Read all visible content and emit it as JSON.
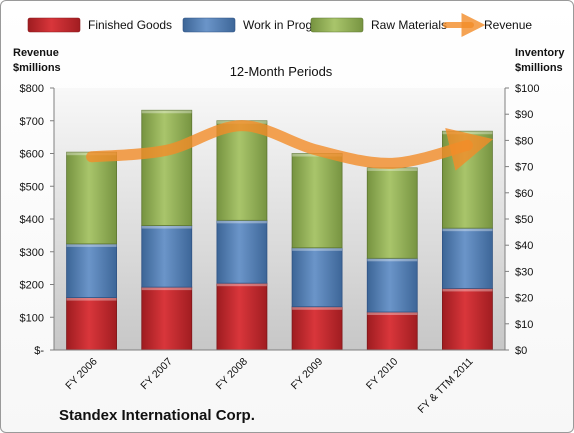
{
  "chart_data": {
    "type": "bar",
    "title": "12-Month Periods",
    "company": "Standex International Corp.",
    "categories": [
      "FY 2006",
      "FY 2007",
      "FY 2008",
      "FY 2009",
      "FY 2010",
      "FY & TTM 2011"
    ],
    "left_axis": {
      "label_line1": "Revenue",
      "label_line2": "$millions",
      "ylim": [
        0,
        800
      ],
      "ticks": [
        "$-",
        "$100",
        "$200",
        "$300",
        "$400",
        "$500",
        "$600",
        "$700",
        "$800"
      ],
      "tick_values": [
        0,
        100,
        200,
        300,
        400,
        500,
        600,
        700,
        800
      ]
    },
    "right_axis": {
      "label_line1": "Inventory",
      "label_line2": "$millions",
      "ylim": [
        0,
        100
      ],
      "ticks": [
        "$0",
        "$10",
        "$20",
        "$30",
        "$40",
        "$50",
        "$60",
        "$70",
        "$80",
        "$90",
        "$100"
      ],
      "tick_values": [
        0,
        10,
        20,
        30,
        40,
        50,
        60,
        70,
        80,
        90,
        100
      ]
    },
    "series": [
      {
        "name": "Finished Goods",
        "kind": "bar",
        "axis": "right",
        "color": "#c0282d",
        "values": [
          20,
          24,
          25.5,
          16.5,
          14.5,
          23.5
        ]
      },
      {
        "name": "Work in Progress",
        "kind": "bar",
        "axis": "right",
        "color": "#4f81bd",
        "values": [
          20.5,
          23.5,
          24,
          22.5,
          20.5,
          23
        ]
      },
      {
        "name": "Raw Materials",
        "kind": "bar",
        "axis": "right",
        "color": "#9bbb59",
        "values": [
          35,
          44,
          38,
          36,
          34.5,
          37
        ]
      },
      {
        "name": "Revenue",
        "kind": "line",
        "axis": "left",
        "color": "#f28c28",
        "values": [
          590,
          610,
          685,
          610,
          570,
          625
        ]
      }
    ],
    "grid": false,
    "legend": "top"
  }
}
